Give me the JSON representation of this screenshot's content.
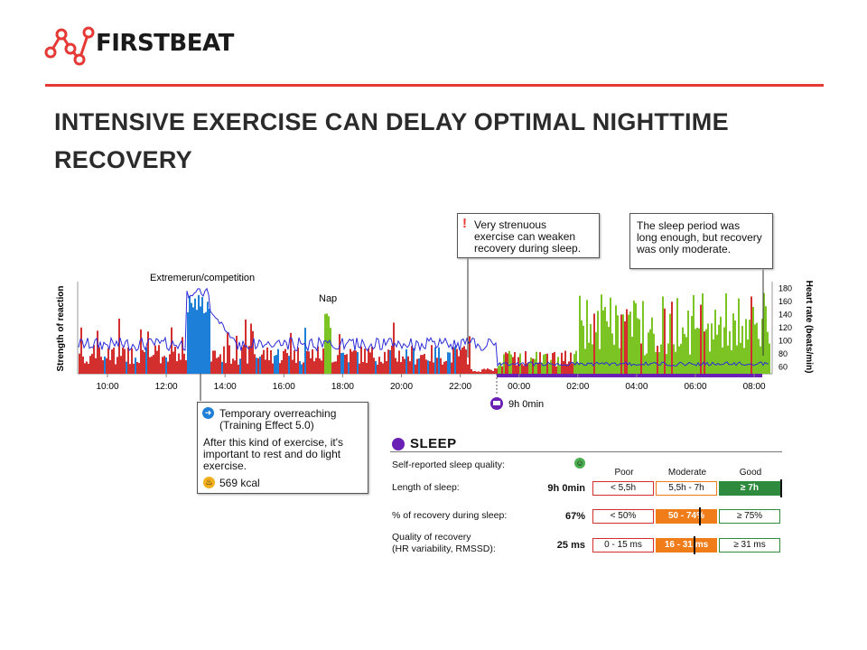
{
  "brand": {
    "name": "FIRSTBEAT",
    "accent_color": "#e53935"
  },
  "slide": {
    "title": "INTENSIVE EXERCISE CAN DELAY OPTIMAL NIGHTTIME RECOVERY"
  },
  "chart_data": {
    "type": "area",
    "ylabel_left": "Strength of reaction",
    "ylabel_right": "Heart rate (beats/min)",
    "yticks_right": [
      "180",
      "160",
      "140",
      "120",
      "100",
      "80",
      "60"
    ],
    "ylim_right": [
      50,
      190
    ],
    "x_ticks": [
      "10:00",
      "12:00",
      "14:00",
      "16:00",
      "18:00",
      "20:00",
      "22:00",
      "00:00",
      "02:00",
      "04:00",
      "06:00",
      "08:00"
    ],
    "annotations": {
      "exercise": "Extremerun/competition",
      "nap": "Nap",
      "sleep_duration": "9h 0min"
    },
    "series_colors": {
      "stress": "#d32f2f",
      "recovery": "#7cc423",
      "exercise": "#1e7fd8",
      "heart_rate": "#2b2bd9"
    }
  },
  "callouts": {
    "weaken": "Very strenuous exercise can weaken recovery during sleep.",
    "moderate": "The sleep period was long enough, but recovery was only moderate.",
    "overreach_title": "Temporary overreaching (Training Effect 5.0)",
    "overreach_body": "After this kind of exercise, it's important to rest and do light exercise.",
    "kcal": "569 kcal"
  },
  "sleep": {
    "title": "SLEEP",
    "columns": [
      "Poor",
      "Moderate",
      "Good"
    ],
    "rows": [
      {
        "label": "Self-reported sleep quality:",
        "value": ""
      },
      {
        "label": "Length of sleep:",
        "value": "9h 0min",
        "cells": [
          "< 5,5h",
          "5,5h - 7h",
          "≥ 7h"
        ]
      },
      {
        "label": "% of recovery during sleep:",
        "value": "67%",
        "cells": [
          "< 50%",
          "50 - 74%",
          "≥ 75%"
        ]
      },
      {
        "label": "Quality of recovery",
        "label2": "(HR variability, RMSSD):",
        "value": "25 ms",
        "cells": [
          "0 - 15 ms",
          "16 - 31 ms",
          "≥ 31 ms"
        ]
      }
    ]
  }
}
